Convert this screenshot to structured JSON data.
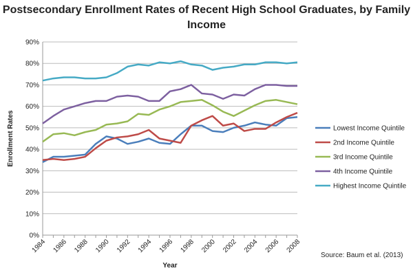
{
  "chart_data": {
    "type": "line",
    "title": "Postsecondary Enrollment Rates of Recent High School Graduates, by Family Income",
    "xlabel": "Year",
    "ylabel": "Enrollment Rates",
    "source": "Source:  Baum et al. (2013)",
    "ylim": [
      0,
      90
    ],
    "yticks": [
      "0%",
      "10%",
      "20%",
      "30%",
      "40%",
      "50%",
      "60%",
      "70%",
      "80%",
      "90%"
    ],
    "xticks": [
      "1984",
      "1986",
      "1988",
      "1990",
      "1992",
      "1994",
      "1996",
      "1998",
      "2000",
      "2002",
      "2004",
      "2006",
      "2008"
    ],
    "grid": true,
    "legend": "right",
    "x": [
      1984,
      1985,
      1986,
      1987,
      1988,
      1989,
      1990,
      1991,
      1992,
      1993,
      1994,
      1995,
      1996,
      1997,
      1998,
      1999,
      2000,
      2001,
      2002,
      2003,
      2004,
      2005,
      2006,
      2007,
      2008
    ],
    "series": [
      {
        "name": "Lowest Income Quintile",
        "color": "#4a7ebb",
        "values": [
          34,
          36.5,
          36.5,
          37,
          37.5,
          42.5,
          46,
          45,
          42.5,
          43.5,
          45,
          43,
          42.5,
          47,
          51,
          51,
          48.5,
          48,
          50,
          51,
          52.5,
          51.5,
          51,
          54.5,
          55
        ]
      },
      {
        "name": "2nd Income Quintile",
        "color": "#be4b48",
        "values": [
          35,
          35.5,
          35,
          35.5,
          36.5,
          40.5,
          44,
          45.5,
          46,
          47,
          49,
          45,
          44,
          43,
          51,
          53.5,
          55.5,
          51,
          52,
          48.5,
          49.5,
          49.5,
          52.5,
          55,
          57
        ]
      },
      {
        "name": "3rd Income Quintile",
        "color": "#98b954",
        "values": [
          43.5,
          47,
          47.5,
          46.5,
          48,
          49,
          51.5,
          52,
          53,
          56.5,
          56,
          58.5,
          60,
          62,
          62.5,
          63,
          60.5,
          57.5,
          55.5,
          58,
          60.5,
          62.5,
          63,
          62,
          61
        ]
      },
      {
        "name": "4th Income Quintile",
        "color": "#7d60a0",
        "values": [
          52,
          55.5,
          58.5,
          60,
          61.5,
          62.5,
          62.5,
          64.5,
          65,
          64.5,
          62.5,
          62.5,
          67,
          68,
          70,
          66,
          65.5,
          63.5,
          65.5,
          65,
          68,
          70,
          70,
          69.5,
          69.5
        ]
      },
      {
        "name": "Highest Income Quintile",
        "color": "#46aac5",
        "values": [
          72,
          73,
          73.5,
          73.5,
          73,
          73,
          73.5,
          75.5,
          78.5,
          79.5,
          79,
          80.5,
          80,
          81,
          79.5,
          79,
          77,
          78,
          78.5,
          79.5,
          79.5,
          80.5,
          80.5,
          80,
          80.5
        ]
      }
    ]
  }
}
